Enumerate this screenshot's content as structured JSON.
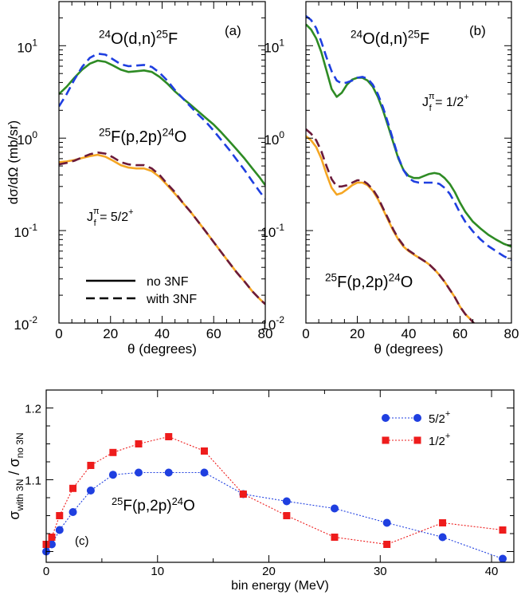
{
  "chart_data": [
    {
      "panel_label": "(a)",
      "type": "line",
      "yscale": "log",
      "xlim": [
        0,
        80
      ],
      "ylim": [
        0.01,
        30
      ],
      "xlabel": "θ (degrees)",
      "ylabel": "dσ/dΩ (mb/sr)",
      "x_ticks": [
        0,
        20,
        40,
        60,
        80
      ],
      "y_ticks": [
        {
          "value": 0.01,
          "base": "10",
          "exp": "-2"
        },
        {
          "value": 0.1,
          "base": "10",
          "exp": "-1"
        },
        {
          "value": 1,
          "base": "10",
          "exp": "0"
        },
        {
          "value": 10,
          "base": "10",
          "exp": "1"
        }
      ],
      "reaction_labels": [
        {
          "pre": "24",
          "a": "O(d,n)",
          "sup": "25",
          "b": "F"
        },
        {
          "pre": "25",
          "a": "F(p,2p)",
          "sup": "24",
          "b": "O"
        }
      ],
      "state_label": {
        "main": "J",
        "sup": "π",
        "sub": "f",
        "value": " = 5/2",
        "value_sup": "+"
      },
      "legend": [
        {
          "label": "no 3NF",
          "style": "solid"
        },
        {
          "label": "with 3NF",
          "style": "dashed"
        }
      ],
      "series": [
        {
          "color": "#2e8b24",
          "style": "solid",
          "x": [
            0,
            3,
            6,
            9,
            12,
            15,
            18,
            21,
            24,
            27,
            30,
            33,
            36,
            39,
            42,
            45,
            48,
            51,
            54,
            57,
            60,
            63,
            66,
            69,
            72,
            75,
            78,
            80
          ],
          "y": [
            3.0,
            3.6,
            4.5,
            5.5,
            6.4,
            6.9,
            6.7,
            6.1,
            5.5,
            5.2,
            5.3,
            5.4,
            5.2,
            4.6,
            3.9,
            3.2,
            2.7,
            2.3,
            1.95,
            1.65,
            1.4,
            1.15,
            0.93,
            0.75,
            0.6,
            0.47,
            0.37,
            0.31
          ]
        },
        {
          "color": "#1f3fe0",
          "style": "dashed",
          "x": [
            0,
            3,
            6,
            9,
            12,
            15,
            18,
            21,
            24,
            27,
            30,
            33,
            36,
            39,
            42,
            45,
            48,
            51,
            54,
            57,
            60,
            63,
            66,
            69,
            72,
            75,
            78,
            80
          ],
          "y": [
            2.2,
            3.0,
            4.3,
            5.9,
            7.4,
            8.2,
            8.0,
            7.1,
            6.3,
            6.0,
            6.1,
            6.2,
            5.9,
            5.1,
            4.2,
            3.3,
            2.7,
            2.2,
            1.8,
            1.5,
            1.2,
            0.95,
            0.75,
            0.58,
            0.45,
            0.34,
            0.26,
            0.22
          ]
        },
        {
          "color": "#f5a623",
          "style": "solid",
          "x": [
            0,
            3,
            6,
            9,
            12,
            15,
            18,
            21,
            24,
            27,
            30,
            33,
            36,
            39,
            42,
            45,
            48,
            51,
            54,
            57,
            60,
            63,
            66,
            69,
            72,
            75,
            78,
            80
          ],
          "y": [
            0.55,
            0.56,
            0.58,
            0.61,
            0.64,
            0.66,
            0.63,
            0.57,
            0.51,
            0.48,
            0.47,
            0.47,
            0.44,
            0.38,
            0.31,
            0.25,
            0.2,
            0.16,
            0.125,
            0.097,
            0.075,
            0.058,
            0.045,
            0.035,
            0.028,
            0.022,
            0.018,
            0.016
          ]
        },
        {
          "color": "#6b1a3a",
          "style": "dashed",
          "x": [
            0,
            3,
            6,
            9,
            12,
            15,
            18,
            21,
            24,
            27,
            30,
            33,
            36,
            39,
            42,
            45,
            48,
            51,
            54,
            57,
            60,
            63,
            66,
            69,
            72,
            75,
            78,
            80
          ],
          "y": [
            0.52,
            0.54,
            0.57,
            0.62,
            0.67,
            0.7,
            0.68,
            0.62,
            0.55,
            0.52,
            0.51,
            0.51,
            0.47,
            0.4,
            0.32,
            0.26,
            0.2,
            0.16,
            0.125,
            0.097,
            0.075,
            0.058,
            0.045,
            0.035,
            0.028,
            0.022,
            0.018,
            0.016
          ]
        }
      ]
    },
    {
      "panel_label": "(b)",
      "type": "line",
      "yscale": "log",
      "xlim": [
        0,
        80
      ],
      "ylim": [
        0.01,
        30
      ],
      "xlabel": "θ (degrees)",
      "x_ticks": [
        0,
        20,
        40,
        60,
        80
      ],
      "y_ticks": [
        {
          "value": 0.01,
          "base": "10",
          "exp": "-2"
        },
        {
          "value": 0.1,
          "base": "10",
          "exp": "-1"
        },
        {
          "value": 1,
          "base": "10",
          "exp": "0"
        },
        {
          "value": 10,
          "base": "10",
          "exp": "1"
        }
      ],
      "reaction_labels": [
        {
          "pre": "24",
          "a": "O(d,n)",
          "sup": "25",
          "b": "F"
        },
        {
          "pre": "25",
          "a": "F(p,2p)",
          "sup": "24",
          "b": "O"
        }
      ],
      "state_label": {
        "main": "J",
        "sup": "π",
        "sub": "f",
        "value": " = 1/2",
        "value_sup": "+"
      },
      "series": [
        {
          "color": "#2e8b24",
          "style": "solid",
          "x": [
            0,
            2,
            4,
            6,
            8,
            10,
            12,
            14,
            16,
            18,
            20,
            22,
            24,
            26,
            28,
            30,
            32,
            34,
            36,
            38,
            40,
            42,
            44,
            46,
            48,
            50,
            52,
            54,
            56,
            58,
            60,
            62,
            65,
            68,
            71,
            74,
            77,
            80
          ],
          "y": [
            17,
            15,
            12,
            8.5,
            5.4,
            3.4,
            2.8,
            3.1,
            3.8,
            4.3,
            4.5,
            4.5,
            4.2,
            3.6,
            2.8,
            2.0,
            1.35,
            0.9,
            0.6,
            0.45,
            0.39,
            0.37,
            0.37,
            0.39,
            0.41,
            0.42,
            0.41,
            0.37,
            0.32,
            0.26,
            0.2,
            0.16,
            0.125,
            0.105,
            0.09,
            0.08,
            0.072,
            0.067
          ]
        },
        {
          "color": "#1f3fe0",
          "style": "dashed",
          "x": [
            0,
            2,
            4,
            6,
            8,
            10,
            12,
            14,
            16,
            18,
            20,
            22,
            24,
            26,
            28,
            30,
            32,
            34,
            36,
            38,
            40,
            42,
            44,
            46,
            48,
            50,
            52,
            54,
            56,
            58,
            60,
            62,
            65,
            68,
            71,
            74,
            77,
            80
          ],
          "y": [
            21,
            19,
            15.5,
            11,
            7.5,
            5.3,
            4.2,
            3.9,
            4.0,
            4.2,
            4.5,
            4.6,
            4.4,
            3.8,
            3.0,
            2.15,
            1.45,
            0.95,
            0.62,
            0.45,
            0.37,
            0.34,
            0.33,
            0.33,
            0.33,
            0.33,
            0.32,
            0.29,
            0.25,
            0.2,
            0.155,
            0.125,
            0.098,
            0.08,
            0.068,
            0.06,
            0.053,
            0.048
          ]
        },
        {
          "color": "#f5a623",
          "style": "solid",
          "x": [
            0,
            2,
            4,
            6,
            8,
            10,
            12,
            14,
            16,
            18,
            20,
            22,
            24,
            26,
            28,
            30,
            32,
            34,
            36,
            38,
            40,
            42,
            44,
            46,
            48,
            50,
            52,
            54,
            56,
            58,
            60,
            62,
            64,
            66
          ],
          "y": [
            1.05,
            0.95,
            0.8,
            0.6,
            0.41,
            0.29,
            0.245,
            0.255,
            0.28,
            0.31,
            0.33,
            0.33,
            0.31,
            0.27,
            0.22,
            0.17,
            0.13,
            0.1,
            0.08,
            0.067,
            0.06,
            0.055,
            0.051,
            0.047,
            0.043,
            0.038,
            0.033,
            0.028,
            0.023,
            0.019,
            0.015,
            0.0125,
            0.011,
            0.0095
          ]
        },
        {
          "color": "#6b1a3a",
          "style": "dashed",
          "x": [
            0,
            2,
            4,
            6,
            8,
            10,
            12,
            14,
            16,
            18,
            20,
            22,
            24,
            26,
            28,
            30,
            32,
            34,
            36,
            38,
            40,
            42,
            44,
            46,
            48,
            50,
            52,
            54,
            56,
            58,
            60,
            62,
            64,
            66
          ],
          "y": [
            1.25,
            1.12,
            0.95,
            0.72,
            0.5,
            0.36,
            0.3,
            0.3,
            0.31,
            0.33,
            0.35,
            0.35,
            0.32,
            0.28,
            0.23,
            0.175,
            0.135,
            0.103,
            0.082,
            0.069,
            0.061,
            0.056,
            0.051,
            0.047,
            0.043,
            0.038,
            0.033,
            0.028,
            0.023,
            0.019,
            0.015,
            0.0125,
            0.011,
            0.0095
          ]
        }
      ]
    },
    {
      "panel_label": "(c)",
      "type": "line",
      "xlim": [
        0,
        42
      ],
      "ylim": [
        0.985,
        1.225
      ],
      "xlabel": "bin energy (MeV)",
      "ylabel": {
        "main": "σ",
        "sub1": "with 3N",
        "mid": " / σ",
        "sub2": "no 3N"
      },
      "x_ticks": [
        0,
        10,
        20,
        30,
        40
      ],
      "y_ticks": [
        1.1,
        1.2
      ],
      "y_tick_labels": [
        "1.1",
        "1.2"
      ],
      "reaction_label": {
        "pre": "25",
        "a": "F(p,2p)",
        "sup": "24",
        "b": "O"
      },
      "legend": [
        {
          "label": "5/2",
          "sup": "+",
          "color": "#1f3fe0",
          "marker": "circle"
        },
        {
          "label": "1/2",
          "sup": "+",
          "color": "#ee1c1c",
          "marker": "square"
        }
      ],
      "series": [
        {
          "name": "5/2+",
          "color": "#1f3fe0",
          "marker": "circle",
          "x": [
            0.0,
            0.5,
            1.2,
            2.4,
            4.0,
            6.0,
            8.3,
            11.0,
            14.2,
            17.7,
            21.6,
            25.9,
            30.6,
            35.6,
            41.0
          ],
          "y": [
            1.0,
            1.01,
            1.03,
            1.055,
            1.085,
            1.107,
            1.11,
            1.11,
            1.11,
            1.08,
            1.07,
            1.06,
            1.04,
            1.02,
            0.99
          ]
        },
        {
          "name": "1/2+",
          "color": "#ee1c1c",
          "marker": "square",
          "x": [
            0.0,
            0.5,
            1.2,
            2.4,
            4.0,
            6.0,
            8.3,
            11.0,
            14.2,
            17.7,
            21.6,
            25.9,
            30.6,
            35.6,
            41.0
          ],
          "y": [
            1.01,
            1.02,
            1.05,
            1.088,
            1.12,
            1.138,
            1.15,
            1.16,
            1.14,
            1.08,
            1.05,
            1.02,
            1.01,
            1.04,
            1.03
          ]
        }
      ]
    }
  ]
}
